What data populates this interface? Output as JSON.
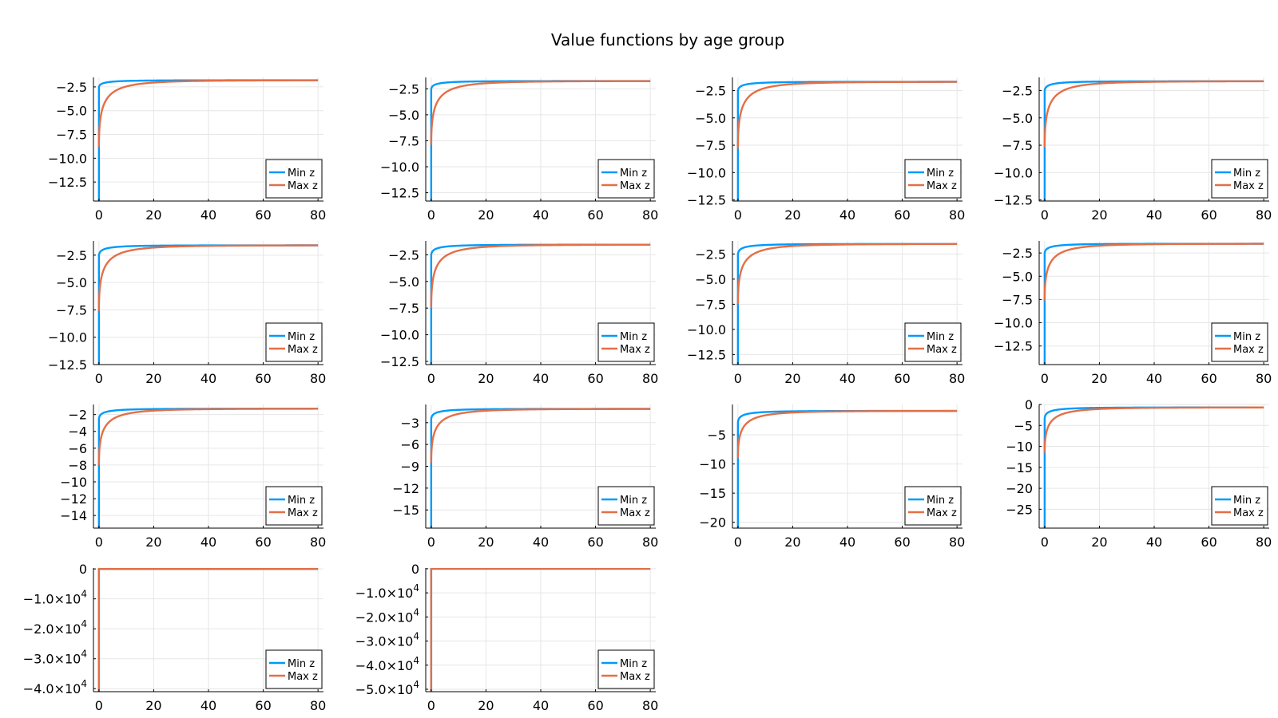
{
  "chart_data": {
    "type": "line",
    "title": "Value functions by age group",
    "legend_position": "bottom-right",
    "series_styles": [
      {
        "name": "Min z",
        "color": "#009AFA"
      },
      {
        "name": "Max z",
        "color": "#E36F47"
      }
    ],
    "panels": [
      {
        "xlim": [
          -2,
          82
        ],
        "ylim": [
          -14.5,
          -1.5
        ],
        "xticks": [
          0,
          20,
          40,
          60,
          80
        ],
        "xtick_labels": [
          "0",
          "20",
          "40",
          "60",
          "80"
        ],
        "yticks": [
          -2.5,
          -5,
          -7.5,
          -10,
          -12.5
        ],
        "ytick_labels": [
          "−2.5",
          "−5.0",
          "−7.5",
          "−10.0",
          "−12.5"
        ],
        "series": [
          {
            "name": "Min z",
            "a": -2.6,
            "b": -1.8
          },
          {
            "name": "Max z",
            "a": -8.8,
            "b": -1.8
          }
        ]
      },
      {
        "xlim": [
          -2,
          82
        ],
        "ylim": [
          -13.3,
          -1.4
        ],
        "xticks": [
          0,
          20,
          40,
          60,
          80
        ],
        "xtick_labels": [
          "0",
          "20",
          "40",
          "60",
          "80"
        ],
        "yticks": [
          -2.5,
          -5,
          -7.5,
          -10,
          -12.5
        ],
        "ytick_labels": [
          "−2.5",
          "−5.0",
          "−7.5",
          "−10.0",
          "−12.5"
        ],
        "series": [
          {
            "name": "Min z",
            "a": -2.6,
            "b": -1.75
          },
          {
            "name": "Max z",
            "a": -7.9,
            "b": -1.75
          }
        ]
      },
      {
        "xlim": [
          -2,
          82
        ],
        "ylim": [
          -12.6,
          -1.3
        ],
        "xticks": [
          0,
          20,
          40,
          60,
          80
        ],
        "xtick_labels": [
          "0",
          "20",
          "40",
          "60",
          "80"
        ],
        "yticks": [
          -2.5,
          -5,
          -7.5,
          -10,
          -12.5
        ],
        "ytick_labels": [
          "−2.5",
          "−5.0",
          "−7.5",
          "−10.0",
          "−12.5"
        ],
        "series": [
          {
            "name": "Min z",
            "a": -2.6,
            "b": -1.7
          },
          {
            "name": "Max z",
            "a": -7.8,
            "b": -1.7
          }
        ]
      },
      {
        "xlim": [
          -2,
          82
        ],
        "ylim": [
          -12.6,
          -1.3
        ],
        "xticks": [
          0,
          20,
          40,
          60,
          80
        ],
        "xtick_labels": [
          "0",
          "20",
          "40",
          "60",
          "80"
        ],
        "yticks": [
          -2.5,
          -5,
          -7.5,
          -10,
          -12.5
        ],
        "ytick_labels": [
          "−2.5",
          "−5.0",
          "−7.5",
          "−10.0",
          "−12.5"
        ],
        "series": [
          {
            "name": "Min z",
            "a": -2.6,
            "b": -1.65
          },
          {
            "name": "Max z",
            "a": -7.7,
            "b": -1.65
          }
        ]
      },
      {
        "xlim": [
          -2,
          82
        ],
        "ylim": [
          -12.5,
          -1.2
        ],
        "xticks": [
          0,
          20,
          40,
          60,
          80
        ],
        "xtick_labels": [
          "0",
          "20",
          "40",
          "60",
          "80"
        ],
        "yticks": [
          -2.5,
          -5,
          -7.5,
          -10,
          -12.5
        ],
        "ytick_labels": [
          "−2.5",
          "−5.0",
          "−7.5",
          "−10.0",
          "−12.5"
        ],
        "series": [
          {
            "name": "Min z",
            "a": -2.6,
            "b": -1.6
          },
          {
            "name": "Max z",
            "a": -7.6,
            "b": -1.6
          }
        ]
      },
      {
        "xlim": [
          -2,
          82
        ],
        "ylim": [
          -12.8,
          -1.2
        ],
        "xticks": [
          0,
          20,
          40,
          60,
          80
        ],
        "xtick_labels": [
          "0",
          "20",
          "40",
          "60",
          "80"
        ],
        "yticks": [
          -2.5,
          -5,
          -7.5,
          -10,
          -12.5
        ],
        "ytick_labels": [
          "−2.5",
          "−5.0",
          "−7.5",
          "−10.0",
          "−12.5"
        ],
        "series": [
          {
            "name": "Min z",
            "a": -2.6,
            "b": -1.55
          },
          {
            "name": "Max z",
            "a": -7.5,
            "b": -1.55
          }
        ]
      },
      {
        "xlim": [
          -2,
          82
        ],
        "ylim": [
          -13.5,
          -1.2
        ],
        "xticks": [
          0,
          20,
          40,
          60,
          80
        ],
        "xtick_labels": [
          "0",
          "20",
          "40",
          "60",
          "80"
        ],
        "yticks": [
          -2.5,
          -5,
          -7.5,
          -10,
          -12.5
        ],
        "ytick_labels": [
          "−2.5",
          "−5.0",
          "−7.5",
          "−10.0",
          "−12.5"
        ],
        "series": [
          {
            "name": "Min z",
            "a": -2.6,
            "b": -1.5
          },
          {
            "name": "Max z",
            "a": -7.5,
            "b": -1.5
          }
        ]
      },
      {
        "xlim": [
          -2,
          82
        ],
        "ylim": [
          -14.5,
          -1.2
        ],
        "xticks": [
          0,
          20,
          40,
          60,
          80
        ],
        "xtick_labels": [
          "0",
          "20",
          "40",
          "60",
          "80"
        ],
        "yticks": [
          -2.5,
          -5,
          -7.5,
          -10,
          -12.5
        ],
        "ytick_labels": [
          "−2.5",
          "−5.0",
          "−7.5",
          "−10.0",
          "−12.5"
        ],
        "series": [
          {
            "name": "Min z",
            "a": -2.6,
            "b": -1.5
          },
          {
            "name": "Max z",
            "a": -7.6,
            "b": -1.5
          }
        ]
      },
      {
        "xlim": [
          -2,
          82
        ],
        "ylim": [
          -15.5,
          -0.8
        ],
        "xticks": [
          0,
          20,
          40,
          60,
          80
        ],
        "xtick_labels": [
          "0",
          "20",
          "40",
          "60",
          "80"
        ],
        "yticks": [
          -2,
          -4,
          -6,
          -8,
          -10,
          -12,
          -14
        ],
        "ytick_labels": [
          "−2",
          "−4",
          "−6",
          "−8",
          "−10",
          "−12",
          "−14"
        ],
        "series": [
          {
            "name": "Min z",
            "a": -2.6,
            "b": -1.3
          },
          {
            "name": "Max z",
            "a": -8.0,
            "b": -1.3
          }
        ]
      },
      {
        "xlim": [
          -2,
          82
        ],
        "ylim": [
          -17.5,
          -0.5
        ],
        "xticks": [
          0,
          20,
          40,
          60,
          80
        ],
        "xtick_labels": [
          "0",
          "20",
          "40",
          "60",
          "80"
        ],
        "yticks": [
          -3,
          -6,
          -9,
          -12,
          -15
        ],
        "ytick_labels": [
          "−3",
          "−6",
          "−9",
          "−12",
          "−15"
        ],
        "series": [
          {
            "name": "Min z",
            "a": -2.6,
            "b": -1.1
          },
          {
            "name": "Max z",
            "a": -8.5,
            "b": -1.1
          }
        ]
      },
      {
        "xlim": [
          -2,
          82
        ],
        "ylim": [
          -21,
          0.2
        ],
        "xticks": [
          0,
          20,
          40,
          60,
          80
        ],
        "xtick_labels": [
          "0",
          "20",
          "40",
          "60",
          "80"
        ],
        "yticks": [
          -5,
          -10,
          -15,
          -20
        ],
        "ytick_labels": [
          "−5",
          "−10",
          "−15",
          "−20"
        ],
        "series": [
          {
            "name": "Min z",
            "a": -3.0,
            "b": -0.9
          },
          {
            "name": "Max z",
            "a": -9.0,
            "b": -0.9
          }
        ]
      },
      {
        "xlim": [
          -2,
          82
        ],
        "ylim": [
          -29.5,
          0
        ],
        "xticks": [
          0,
          20,
          40,
          60,
          80
        ],
        "xtick_labels": [
          "0",
          "20",
          "40",
          "60",
          "80"
        ],
        "yticks": [
          0,
          -5,
          -10,
          -15,
          -20,
          -25
        ],
        "ytick_labels": [
          "0",
          "−5",
          "−10",
          "−15",
          "−20",
          "−25"
        ],
        "series": [
          {
            "name": "Min z",
            "a": -3.5,
            "b": -0.7
          },
          {
            "name": "Max z",
            "a": -11.5,
            "b": -0.7
          }
        ]
      },
      {
        "xlim": [
          -2,
          82
        ],
        "ylim": [
          -41000,
          300
        ],
        "xticks": [
          0,
          20,
          40,
          60,
          80
        ],
        "xtick_labels": [
          "0",
          "20",
          "40",
          "60",
          "80"
        ],
        "yticks": [
          0,
          -10000,
          -20000,
          -30000,
          -40000
        ],
        "ytick_labels": [
          "0",
          "−1.0×10^4",
          "−2.0×10^4",
          "−3.0×10^4",
          "−4.0×10^4"
        ],
        "series": [
          {
            "name": "Min z",
            "a": 0,
            "b": -2,
            "drop": -41000
          },
          {
            "name": "Max z",
            "a": 0,
            "b": -2,
            "drop": -41000
          }
        ]
      },
      {
        "xlim": [
          -2,
          82
        ],
        "ylim": [
          -51000,
          300
        ],
        "xticks": [
          0,
          20,
          40,
          60,
          80
        ],
        "xtick_labels": [
          "0",
          "20",
          "40",
          "60",
          "80"
        ],
        "yticks": [
          0,
          -10000,
          -20000,
          -30000,
          -40000,
          -50000
        ],
        "ytick_labels": [
          "0",
          "−1.0×10^4",
          "−2.0×10^4",
          "−3.0×10^4",
          "−4.0×10^4",
          "−5.0×10^4"
        ],
        "series": [
          {
            "name": "Min z",
            "a": 0,
            "b": -2,
            "drop": -51000
          },
          {
            "name": "Max z",
            "a": 0,
            "b": -2,
            "drop": -51000
          }
        ]
      }
    ]
  }
}
